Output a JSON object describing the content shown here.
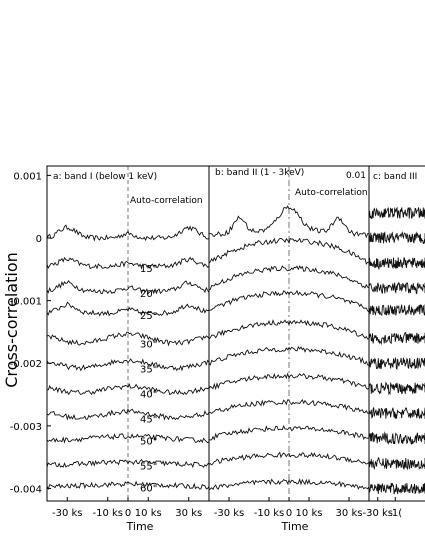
{
  "chart_data": {
    "type": "line",
    "ylabel": "Cross-correlation",
    "yticks": [
      "0.001",
      "0",
      "-0.001",
      "-0.002",
      "-0.003",
      "-0.004"
    ],
    "ylim": [
      -0.0042,
      0.00115
    ],
    "xlim": [
      -40,
      40
    ],
    "x_unit": "ks",
    "panels": [
      {
        "label": "a: band I (below 1 keV)",
        "auto_label": "Auto-correlation",
        "xtick_labels": [
          "-30 ks",
          "-10 ks",
          "0",
          "10 ks",
          "30 ks"
        ],
        "xlabel": "Time",
        "series": [
          {
            "sep": "",
            "offset": 0.0,
            "amp": 0.00028,
            "shape": "sides"
          },
          {
            "sep": "15\"",
            "offset": -0.00045,
            "amp": 0.00018,
            "shape": "sides"
          },
          {
            "sep": "20\"",
            "offset": -0.00085,
            "amp": 0.00022,
            "shape": "sides"
          },
          {
            "sep": "25\"",
            "offset": -0.0012,
            "amp": 0.00022,
            "shape": "sides"
          },
          {
            "sep": "30\"",
            "offset": -0.00165,
            "amp": 0.00014,
            "shape": "waves"
          },
          {
            "sep": "35\"",
            "offset": -0.00205,
            "amp": 0.00012,
            "shape": "waves"
          },
          {
            "sep": "40\"",
            "offset": -0.00245,
            "amp": 0.0001,
            "shape": "waves"
          },
          {
            "sep": "45\"",
            "offset": -0.00285,
            "amp": 0.0001,
            "shape": "waves"
          },
          {
            "sep": "50\"",
            "offset": -0.0032,
            "amp": 8e-05,
            "shape": "flat"
          },
          {
            "sep": "55\"",
            "offset": -0.0036,
            "amp": 6e-05,
            "shape": "flat"
          },
          {
            "sep": "60\"",
            "offset": -0.00395,
            "amp": 5e-05,
            "shape": "flat"
          }
        ]
      },
      {
        "label": "b: band II (1 - 3keV)",
        "corner_tick": "0.01",
        "auto_label": "Auto-correlation",
        "xtick_labels": [
          "-30 ks",
          "-10 ks",
          "0",
          "10 ks",
          "30 ks"
        ],
        "xlabel": "Time",
        "series": [
          {
            "sep": "",
            "offset": 5e-05,
            "amp": 0.0006,
            "shape": "peak"
          },
          {
            "sep": "",
            "offset": -0.0004,
            "amp": 0.0004,
            "shape": "hump"
          },
          {
            "sep": "",
            "offset": -0.0008,
            "amp": 0.00035,
            "shape": "hump"
          },
          {
            "sep": "",
            "offset": -0.00115,
            "amp": 0.0003,
            "shape": "hump"
          },
          {
            "sep": "",
            "offset": -0.0016,
            "amp": 0.00028,
            "shape": "hump"
          },
          {
            "sep": "",
            "offset": -0.002,
            "amp": 0.00025,
            "shape": "hump"
          },
          {
            "sep": "",
            "offset": -0.0024,
            "amp": 0.00022,
            "shape": "hump"
          },
          {
            "sep": "",
            "offset": -0.0028,
            "amp": 0.0002,
            "shape": "hump"
          },
          {
            "sep": "",
            "offset": -0.0032,
            "amp": 0.00018,
            "shape": "hump"
          },
          {
            "sep": "",
            "offset": -0.0036,
            "amp": 0.00015,
            "shape": "hump"
          },
          {
            "sep": "",
            "offset": -0.004,
            "amp": 0.00012,
            "shape": "hump"
          }
        ]
      },
      {
        "label": "c: band III",
        "xtick_labels": [
          "-30 ks",
          "-1("
        ],
        "xlabel": "",
        "series": [
          {
            "sep": "",
            "offset": 0.0004,
            "amp": 0.0001,
            "shape": "noise"
          },
          {
            "sep": "",
            "offset": 0.0,
            "amp": 0.0001,
            "shape": "noise"
          },
          {
            "sep": "",
            "offset": -0.0004,
            "amp": 0.0001,
            "shape": "noise"
          },
          {
            "sep": "",
            "offset": -0.0008,
            "amp": 0.0001,
            "shape": "noise"
          },
          {
            "sep": "",
            "offset": -0.00115,
            "amp": 0.0001,
            "shape": "noise"
          },
          {
            "sep": "",
            "offset": -0.0016,
            "amp": 0.0001,
            "shape": "noise"
          },
          {
            "sep": "",
            "offset": -0.002,
            "amp": 0.0001,
            "shape": "noise"
          },
          {
            "sep": "",
            "offset": -0.0024,
            "amp": 0.0001,
            "shape": "noise"
          },
          {
            "sep": "",
            "offset": -0.0028,
            "amp": 0.0001,
            "shape": "noise"
          },
          {
            "sep": "",
            "offset": -0.0032,
            "amp": 0.0001,
            "shape": "noise"
          },
          {
            "sep": "",
            "offset": -0.0036,
            "amp": 0.0001,
            "shape": "noise"
          },
          {
            "sep": "",
            "offset": -0.004,
            "amp": 0.0001,
            "shape": "noise"
          }
        ]
      }
    ]
  }
}
